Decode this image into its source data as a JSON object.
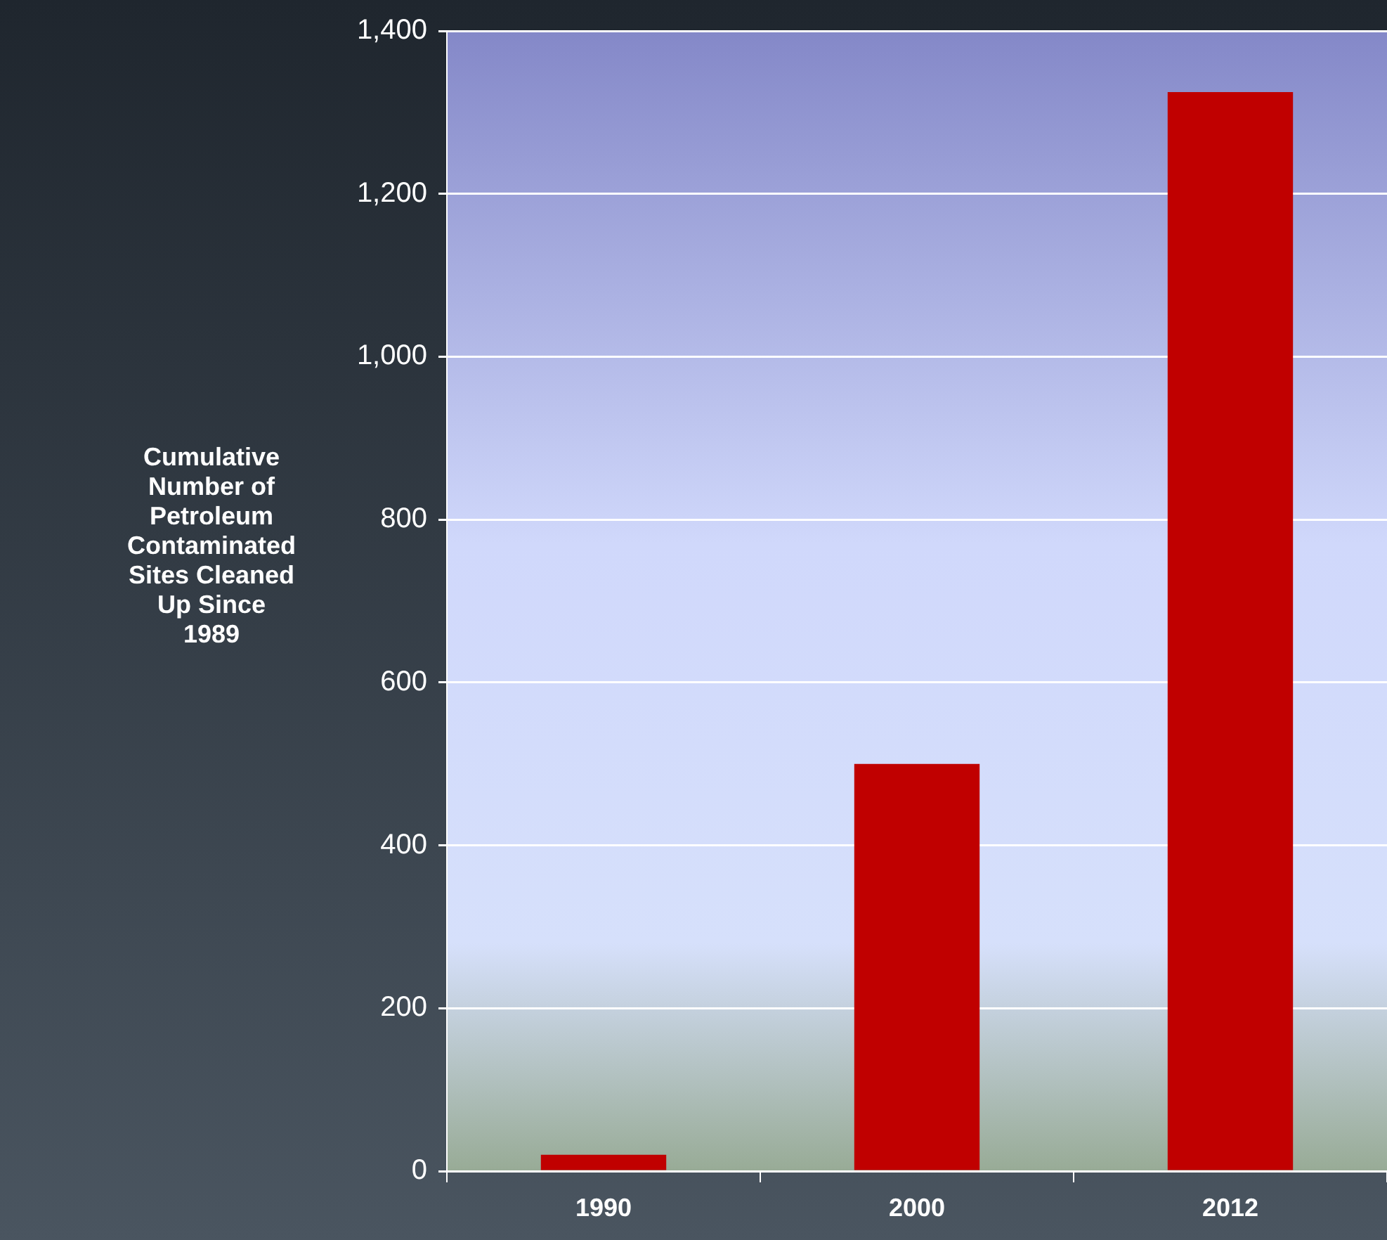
{
  "chart_data": {
    "type": "bar",
    "ylabel": "Cumulative Number of Petroleum Contaminated Sites Cleaned Up Since 1989",
    "categories": [
      "1990",
      "2000",
      "2012"
    ],
    "values": [
      20,
      500,
      1325
    ],
    "color": "#c00000",
    "ylim": [
      0,
      1400
    ],
    "yticks": [
      {
        "value": 0,
        "label": "0"
      },
      {
        "value": 200,
        "label": "200"
      },
      {
        "value": 400,
        "label": "400"
      },
      {
        "value": 600,
        "label": "600"
      },
      {
        "value": 800,
        "label": "800"
      },
      {
        "value": 1000,
        "label": "1,000"
      },
      {
        "value": 1200,
        "label": "1,200"
      },
      {
        "value": 1400,
        "label": "1,400"
      }
    ],
    "grid": "y",
    "legend": false
  }
}
